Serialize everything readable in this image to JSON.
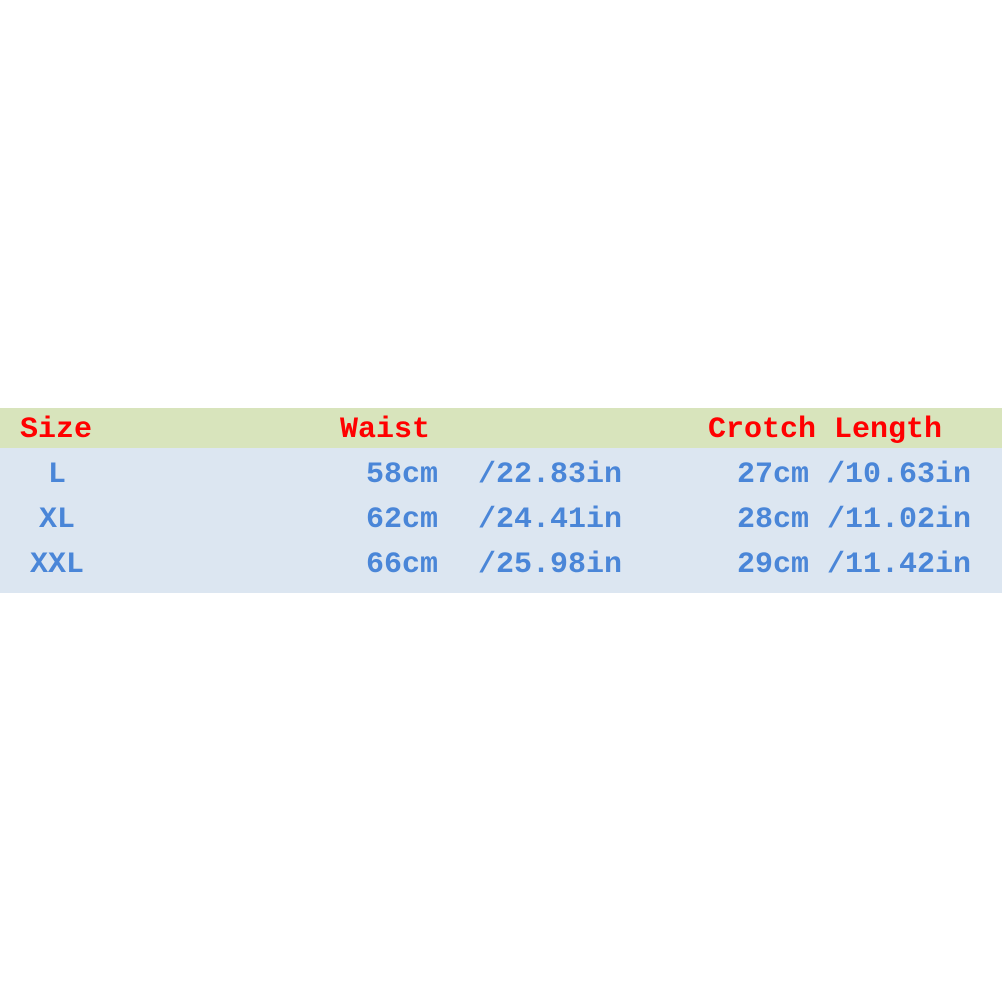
{
  "colors": {
    "header_bg": "#d8e4bc",
    "body_bg": "#dce6f1",
    "header_text": "#ff0000",
    "body_text": "#4a86d8"
  },
  "headers": {
    "size": "Size",
    "waist": "Waist",
    "crotch": "Crotch Length"
  },
  "rows": [
    {
      "size": "L",
      "waist_cm": "58cm",
      "waist_in": "/22.83in",
      "crotch": "27cm /10.63in"
    },
    {
      "size": "XL",
      "waist_cm": "62cm",
      "waist_in": "/24.41in",
      "crotch": "28cm /11.02in"
    },
    {
      "size": "XXL",
      "waist_cm": "66cm",
      "waist_in": "/25.98in",
      "crotch": "29cm /11.42in"
    }
  ]
}
